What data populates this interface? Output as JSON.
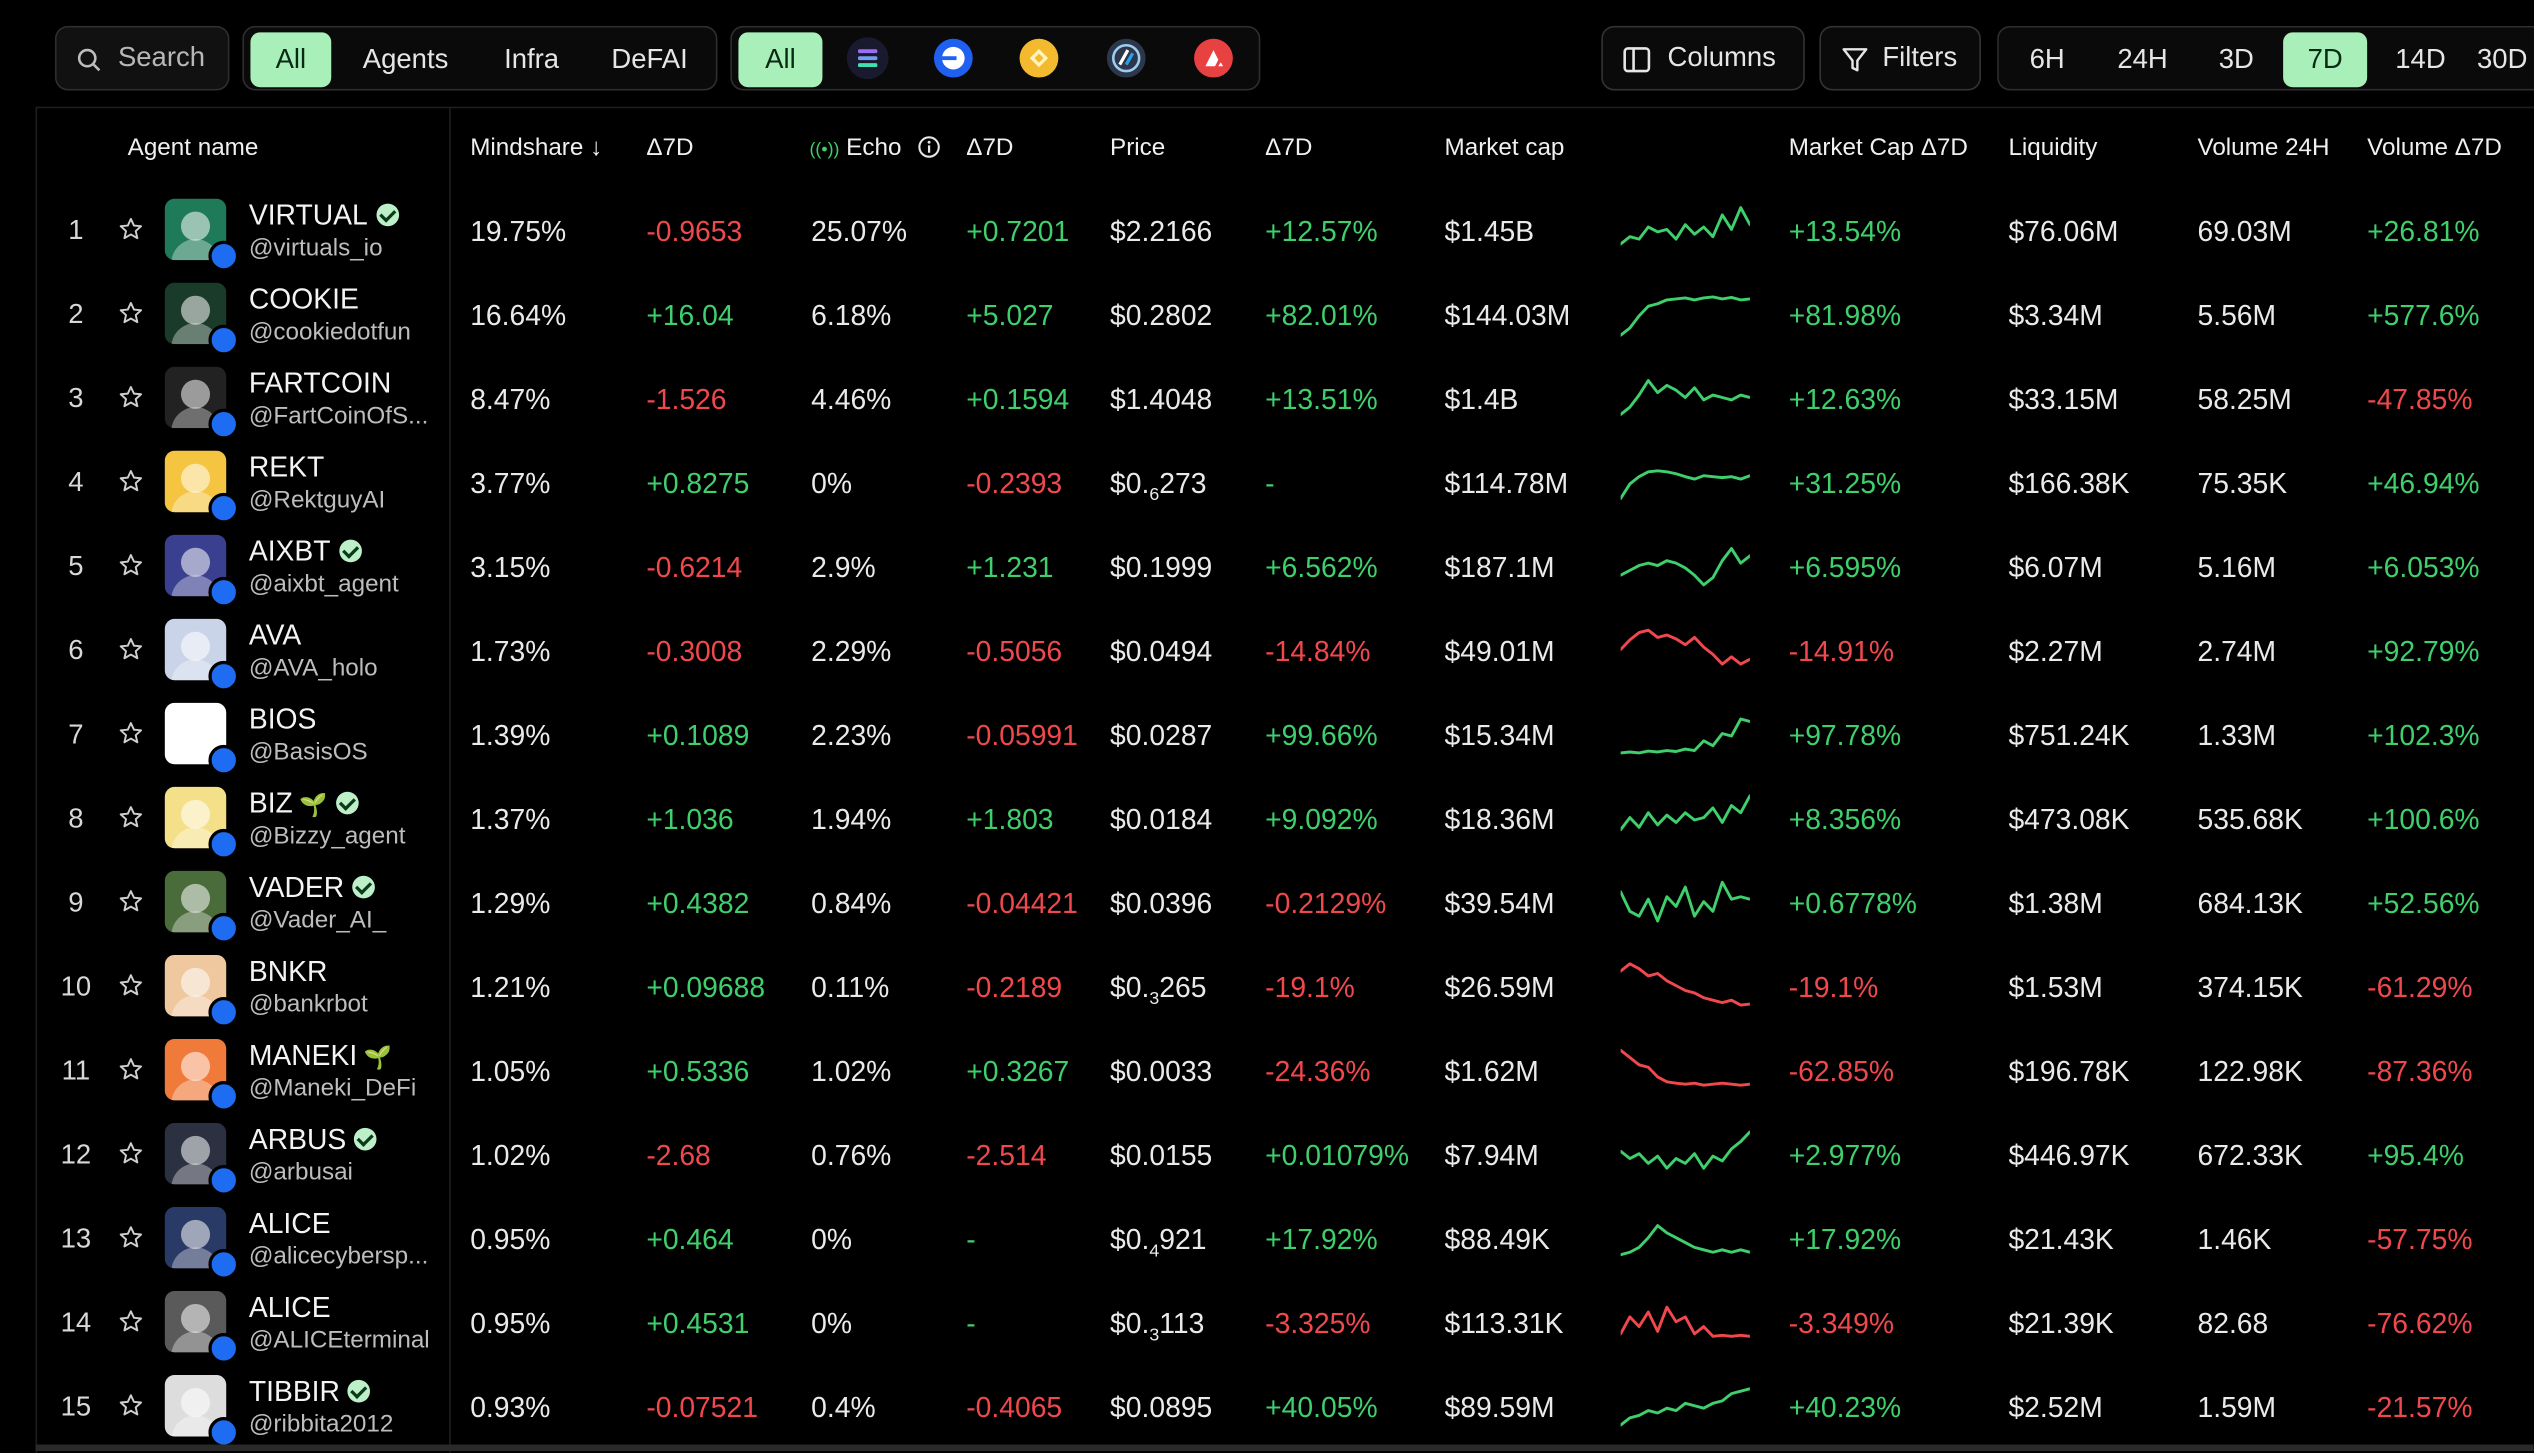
{
  "search": {
    "placeholder": "Search"
  },
  "categories": [
    "All",
    "Agents",
    "Infra",
    "DeFAI"
  ],
  "chain_filter": {
    "all_label": "All",
    "chains": [
      "solana-icon",
      "base-icon",
      "bnb-icon",
      "arbitrum-icon",
      "avalanche-icon"
    ]
  },
  "toolbar": {
    "columns_label": "Columns",
    "filters_label": "Filters"
  },
  "timeframes": [
    "6H",
    "24H",
    "3D",
    "7D",
    "14D",
    "30D"
  ],
  "timeframe_selected": "7D",
  "columns": {
    "agent": "Agent name",
    "mindshare": "Mindshare ↓",
    "mindshare_d7": "Δ7D",
    "echo": "Echo",
    "echo_d7": "Δ7D",
    "price": "Price",
    "price_d7": "Δ7D",
    "mcap": "Market cap",
    "mcap_d7": "Market Cap Δ7D",
    "liquidity": "Liquidity",
    "vol24": "Volume 24H",
    "vol_d7": "Volume Δ7D"
  },
  "colors": {
    "positive": "#3fcf6c",
    "negative": "#f0484c",
    "accent": "#a8efb9"
  },
  "rows": [
    {
      "rank": "1",
      "name": "VIRTUAL",
      "verified": true,
      "sprout": false,
      "handle": "@virtuals_io",
      "mindshare": "19.75%",
      "ms_d7": "-0.9653",
      "echo": "25.07%",
      "echo_d7": "+0.7201",
      "price": "$2.2166",
      "price_d7": "+12.57%",
      "mcap": "$1.45B",
      "mcap_d7": "+13.54%",
      "liquidity": "$76.06M",
      "vol24": "69.03M",
      "vol_d7": "+26.81%",
      "spark": [
        0.2,
        0.35,
        0.3,
        0.55,
        0.45,
        0.5,
        0.3,
        0.6,
        0.4,
        0.55,
        0.35,
        0.8,
        0.5,
        0.95,
        0.6
      ]
    },
    {
      "rank": "2",
      "name": "COOKIE",
      "verified": false,
      "sprout": false,
      "handle": "@cookiedotfun",
      "mindshare": "16.64%",
      "ms_d7": "+16.04",
      "echo": "6.18%",
      "echo_d7": "+5.027",
      "price": "$0.2802",
      "price_d7": "+82.01%",
      "mcap": "$144.03M",
      "mcap_d7": "+81.98%",
      "liquidity": "$3.34M",
      "vol24": "5.56M",
      "vol_d7": "+577.6%",
      "spark": [
        0.05,
        0.2,
        0.45,
        0.65,
        0.7,
        0.78,
        0.8,
        0.82,
        0.78,
        0.82,
        0.84,
        0.8,
        0.83,
        0.78,
        0.8
      ]
    },
    {
      "rank": "3",
      "name": "FARTCOIN",
      "verified": false,
      "sprout": false,
      "handle": "@FartCoinOfS...",
      "mindshare": "8.47%",
      "ms_d7": "-1.526",
      "echo": "4.46%",
      "echo_d7": "+0.1594",
      "price": "$1.4048",
      "price_d7": "+13.51%",
      "mcap": "$1.4B",
      "mcap_d7": "+12.63%",
      "liquidity": "$33.15M",
      "vol24": "58.25M",
      "vol_d7": "-47.85%",
      "spark": [
        0.15,
        0.3,
        0.55,
        0.85,
        0.6,
        0.75,
        0.65,
        0.5,
        0.7,
        0.45,
        0.55,
        0.5,
        0.45,
        0.55,
        0.5
      ]
    },
    {
      "rank": "4",
      "name": "REKT",
      "verified": false,
      "sprout": false,
      "handle": "@RektguyAI",
      "mindshare": "3.77%",
      "ms_d7": "+0.8275",
      "echo": "0%",
      "echo_d7": "-0.2393",
      "price": "$0.",
      "price_sub": "6",
      "price_tail": "273",
      "price_d7": "-",
      "mcap": "$114.78M",
      "mcap_d7": "+31.25%",
      "liquidity": "$166.38K",
      "vol24": "75.35K",
      "vol_d7": "+46.94%",
      "spark": [
        0.15,
        0.45,
        0.6,
        0.7,
        0.72,
        0.7,
        0.66,
        0.6,
        0.55,
        0.62,
        0.6,
        0.58,
        0.6,
        0.55,
        0.62
      ]
    },
    {
      "rank": "5",
      "name": "AIXBT",
      "verified": true,
      "sprout": false,
      "handle": "@aixbt_agent",
      "mindshare": "3.15%",
      "ms_d7": "-0.6214",
      "echo": "2.9%",
      "echo_d7": "+1.231",
      "price": "$0.1999",
      "price_d7": "+6.562%",
      "mcap": "$187.1M",
      "mcap_d7": "+6.595%",
      "liquidity": "$6.07M",
      "vol24": "5.16M",
      "vol_d7": "+6.053%",
      "spark": [
        0.3,
        0.4,
        0.5,
        0.55,
        0.5,
        0.6,
        0.55,
        0.45,
        0.3,
        0.1,
        0.25,
        0.6,
        0.85,
        0.55,
        0.7
      ]
    },
    {
      "rank": "6",
      "name": "AVA",
      "verified": false,
      "sprout": false,
      "handle": "@AVA_holo",
      "mindshare": "1.73%",
      "ms_d7": "-0.3008",
      "echo": "2.29%",
      "echo_d7": "-0.5056",
      "price": "$0.0494",
      "price_d7": "-14.84%",
      "mcap": "$49.01M",
      "mcap_d7": "-14.91%",
      "liquidity": "$2.27M",
      "vol24": "2.74M",
      "vol_d7": "+92.79%",
      "spark": [
        0.5,
        0.7,
        0.85,
        0.9,
        0.75,
        0.8,
        0.72,
        0.6,
        0.75,
        0.55,
        0.4,
        0.2,
        0.35,
        0.2,
        0.3
      ]
    },
    {
      "rank": "7",
      "name": "BIOS",
      "verified": false,
      "sprout": false,
      "handle": "@BasisOS",
      "mindshare": "1.39%",
      "ms_d7": "+0.1089",
      "echo": "2.23%",
      "echo_d7": "-0.05991",
      "price": "$0.0287",
      "price_d7": "+99.66%",
      "mcap": "$15.34M",
      "mcap_d7": "+97.78%",
      "liquidity": "$751.24K",
      "vol24": "1.33M",
      "vol_d7": "+102.3%",
      "spark": [
        0.1,
        0.12,
        0.1,
        0.14,
        0.12,
        0.15,
        0.13,
        0.18,
        0.15,
        0.35,
        0.25,
        0.5,
        0.45,
        0.8,
        0.75
      ]
    },
    {
      "rank": "8",
      "name": "BIZ",
      "verified": true,
      "sprout": true,
      "handle": "@Bizzy_agent",
      "mindshare": "1.37%",
      "ms_d7": "+1.036",
      "echo": "1.94%",
      "echo_d7": "+1.803",
      "price": "$0.0184",
      "price_d7": "+9.092%",
      "mcap": "$18.36M",
      "mcap_d7": "+8.356%",
      "liquidity": "$473.08K",
      "vol24": "535.68K",
      "vol_d7": "+100.6%",
      "spark": [
        0.25,
        0.5,
        0.3,
        0.6,
        0.35,
        0.55,
        0.4,
        0.6,
        0.45,
        0.5,
        0.7,
        0.4,
        0.75,
        0.6,
        0.95
      ]
    },
    {
      "rank": "9",
      "name": "VADER",
      "verified": true,
      "sprout": false,
      "handle": "@Vader_AI_",
      "mindshare": "1.29%",
      "ms_d7": "+0.4382",
      "echo": "0.84%",
      "echo_d7": "-0.04421",
      "price": "$0.0396",
      "price_d7": "-0.2129%",
      "mcap": "$39.54M",
      "mcap_d7": "+0.6778%",
      "liquidity": "$1.38M",
      "vol24": "684.13K",
      "vol_d7": "+52.56%",
      "spark": [
        0.7,
        0.3,
        0.2,
        0.55,
        0.1,
        0.6,
        0.4,
        0.8,
        0.2,
        0.5,
        0.3,
        0.9,
        0.55,
        0.6,
        0.55
      ]
    },
    {
      "rank": "10",
      "name": "BNKR",
      "verified": false,
      "sprout": false,
      "handle": "@bankrbot",
      "mindshare": "1.21%",
      "ms_d7": "+0.09688",
      "echo": "0.11%",
      "echo_d7": "-0.2189",
      "price": "$0.",
      "price_sub": "3",
      "price_tail": "265",
      "price_d7": "-19.1%",
      "mcap": "$26.59M",
      "mcap_d7": "-19.1%",
      "liquidity": "$1.53M",
      "vol24": "374.15K",
      "vol_d7": "-61.29%",
      "spark": [
        0.8,
        0.95,
        0.85,
        0.7,
        0.75,
        0.6,
        0.5,
        0.4,
        0.35,
        0.25,
        0.2,
        0.15,
        0.2,
        0.1,
        0.12
      ]
    },
    {
      "rank": "11",
      "name": "MANEKI",
      "verified": false,
      "sprout": true,
      "handle": "@Maneki_DeFi",
      "mindshare": "1.05%",
      "ms_d7": "+0.5336",
      "echo": "1.02%",
      "echo_d7": "+0.3267",
      "price": "$0.0033",
      "price_d7": "-24.36%",
      "mcap": "$1.62M",
      "mcap_d7": "-62.85%",
      "liquidity": "$196.78K",
      "vol24": "122.98K",
      "vol_d7": "-87.36%",
      "spark": [
        0.9,
        0.75,
        0.6,
        0.55,
        0.35,
        0.25,
        0.22,
        0.2,
        0.22,
        0.18,
        0.2,
        0.22,
        0.2,
        0.18,
        0.2
      ]
    },
    {
      "rank": "12",
      "name": "ARBUS",
      "verified": true,
      "sprout": false,
      "handle": "@arbusai",
      "mindshare": "1.02%",
      "ms_d7": "-2.68",
      "echo": "0.76%",
      "echo_d7": "-2.514",
      "price": "$0.0155",
      "price_d7": "+0.01079%",
      "mcap": "$7.94M",
      "mcap_d7": "+2.977%",
      "liquidity": "$446.97K",
      "vol24": "672.33K",
      "vol_d7": "+95.4%",
      "spark": [
        0.55,
        0.4,
        0.5,
        0.3,
        0.45,
        0.2,
        0.4,
        0.3,
        0.5,
        0.2,
        0.45,
        0.35,
        0.6,
        0.75,
        0.95
      ]
    },
    {
      "rank": "13",
      "name": "ALICE",
      "verified": false,
      "sprout": false,
      "handle": "@alicecybersp...",
      "mindshare": "0.95%",
      "ms_d7": "+0.464",
      "echo": "0%",
      "echo_d7": "-",
      "price": "$0.",
      "price_sub": "4",
      "price_tail": "921",
      "price_d7": "+17.92%",
      "mcap": "$88.49K",
      "mcap_d7": "+17.92%",
      "liquidity": "$21.43K",
      "vol24": "1.46K",
      "vol_d7": "-57.75%",
      "spark": [
        0.15,
        0.2,
        0.3,
        0.5,
        0.75,
        0.6,
        0.5,
        0.4,
        0.3,
        0.25,
        0.2,
        0.25,
        0.2,
        0.25,
        0.2
      ]
    },
    {
      "rank": "14",
      "name": "ALICE",
      "verified": false,
      "sprout": false,
      "handle": "@ALICEterminal",
      "mindshare": "0.95%",
      "ms_d7": "+0.4531",
      "echo": "0%",
      "echo_d7": "-",
      "price": "$0.",
      "price_sub": "3",
      "price_tail": "113",
      "price_d7": "-3.325%",
      "mcap": "$113.31K",
      "mcap_d7": "-3.349%",
      "liquidity": "$21.39K",
      "vol24": "82.68",
      "vol_d7": "-76.62%",
      "spark": [
        0.25,
        0.6,
        0.4,
        0.7,
        0.3,
        0.8,
        0.5,
        0.6,
        0.25,
        0.4,
        0.2,
        0.22,
        0.2,
        0.22,
        0.2
      ]
    },
    {
      "rank": "15",
      "name": "TIBBIR",
      "verified": true,
      "sprout": false,
      "handle": "@ribbita2012",
      "mindshare": "0.93%",
      "ms_d7": "-0.07521",
      "echo": "0.4%",
      "echo_d7": "-0.4065",
      "price": "$0.0895",
      "price_d7": "+40.05%",
      "mcap": "$89.59M",
      "mcap_d7": "+40.23%",
      "liquidity": "$2.52M",
      "vol24": "1.59M",
      "vol_d7": "-21.57%",
      "spark": [
        0.1,
        0.25,
        0.3,
        0.4,
        0.35,
        0.45,
        0.4,
        0.55,
        0.5,
        0.45,
        0.55,
        0.6,
        0.75,
        0.8,
        0.85
      ]
    }
  ]
}
